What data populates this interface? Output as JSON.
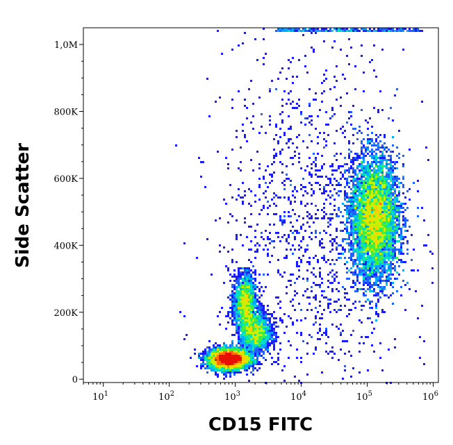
{
  "chart_data": {
    "type": "scatter",
    "subtype": "flow-cytometry-density-dot-plot",
    "xlabel": "CD15 FITC",
    "ylabel": "Side Scatter",
    "x_scale": "log",
    "xlim": [
      5,
      1200000
    ],
    "ylim": [
      -10000,
      1050000
    ],
    "x_ticks": [
      {
        "value": 10,
        "base": "10",
        "exp": "1"
      },
      {
        "value": 100,
        "base": "10",
        "exp": "2"
      },
      {
        "value": 1000,
        "base": "10",
        "exp": "3"
      },
      {
        "value": 10000,
        "base": "10",
        "exp": "4"
      },
      {
        "value": 100000,
        "base": "10",
        "exp": "5"
      },
      {
        "value": 1000000,
        "base": "10",
        "exp": "6"
      }
    ],
    "y_ticks": [
      {
        "value": 0,
        "label": "0"
      },
      {
        "value": 200000,
        "label": "200K"
      },
      {
        "value": 400000,
        "label": "400K"
      },
      {
        "value": 600000,
        "label": "600K"
      },
      {
        "value": 800000,
        "label": "800K"
      },
      {
        "value": 1000000,
        "label": "1,0M"
      }
    ],
    "grid": false,
    "color_scale": "density (blue → cyan → green → yellow → red)",
    "populations": [
      {
        "x_center": 800,
        "y_center": 60000,
        "x_spread_decades": 0.15,
        "y_spread": 15000,
        "density": "very high",
        "peak_color": "red"
      },
      {
        "x_center": 1400,
        "y_center": 230000,
        "x_spread_decades": 0.08,
        "y_spread": 40000,
        "density": "medium",
        "peak_color": "cyan"
      },
      {
        "x_center": 2000,
        "y_center": 140000,
        "x_spread_decades": 0.12,
        "y_spread": 30000,
        "density": "medium",
        "peak_color": "cyan"
      },
      {
        "x_center": 130000,
        "y_center": 480000,
        "x_spread_decades": 0.18,
        "y_spread": 90000,
        "density": "high",
        "peak_color": "yellow"
      },
      {
        "x_center": 15000,
        "y_center": 450000,
        "x_spread_decades": 0.7,
        "y_spread": 280000,
        "density": "sparse",
        "peak_color": "blue"
      }
    ]
  }
}
